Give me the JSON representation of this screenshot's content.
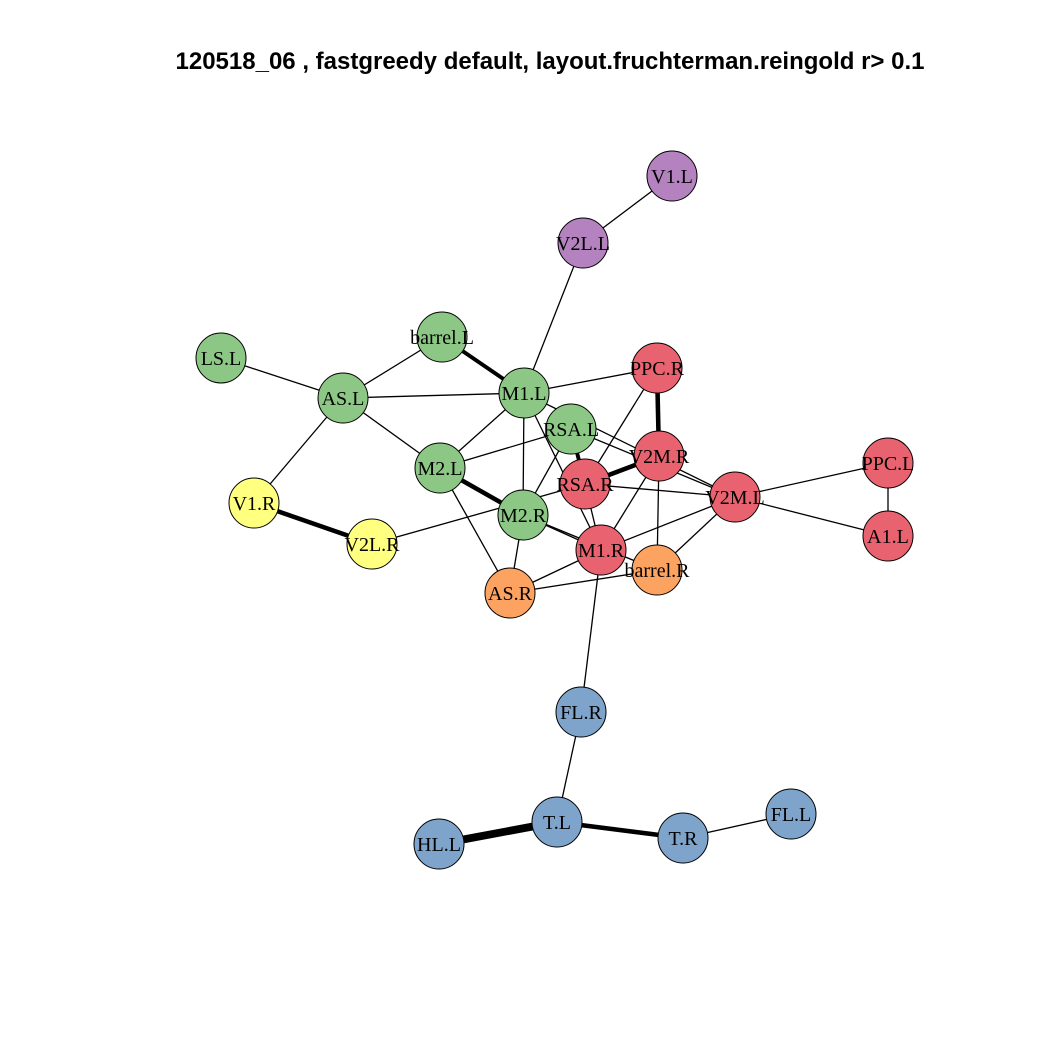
{
  "title": "120518_06 , fastgreedy default,  layout.fruchterman.reingold r> 0.1",
  "colors": {
    "green": "#8DC785",
    "red": "#E8636F",
    "orange": "#FCA362",
    "yellow": "#FFFF80",
    "purple": "#B482BF",
    "blue": "#7FA4CC"
  },
  "nodes": [
    {
      "id": "V1.L",
      "group": "purple"
    },
    {
      "id": "V2L.L",
      "group": "purple"
    },
    {
      "id": "barrel.L",
      "group": "green"
    },
    {
      "id": "LS.L",
      "group": "green"
    },
    {
      "id": "AS.L",
      "group": "green"
    },
    {
      "id": "M1.L",
      "group": "green"
    },
    {
      "id": "RSA.L",
      "group": "green"
    },
    {
      "id": "M2.L",
      "group": "green"
    },
    {
      "id": "M2.R",
      "group": "green"
    },
    {
      "id": "PPC.R",
      "group": "red"
    },
    {
      "id": "V2M.R",
      "group": "red"
    },
    {
      "id": "RSA.R",
      "group": "red"
    },
    {
      "id": "V2M.L",
      "group": "red"
    },
    {
      "id": "PPC.L",
      "group": "red"
    },
    {
      "id": "A1.L",
      "group": "red"
    },
    {
      "id": "M1.R",
      "group": "red"
    },
    {
      "id": "V1.R",
      "group": "yellow"
    },
    {
      "id": "V2L.R",
      "group": "yellow"
    },
    {
      "id": "barrel.R",
      "group": "orange"
    },
    {
      "id": "AS.R",
      "group": "orange"
    },
    {
      "id": "FL.R",
      "group": "blue"
    },
    {
      "id": "T.L",
      "group": "blue"
    },
    {
      "id": "T.R",
      "group": "blue"
    },
    {
      "id": "FL.L",
      "group": "blue"
    },
    {
      "id": "HL.L",
      "group": "blue"
    }
  ],
  "edges": [
    [
      "V1.L",
      "V2L.L",
      1
    ],
    [
      "V2L.L",
      "M1.L",
      1
    ],
    [
      "barrel.L",
      "AS.L",
      1
    ],
    [
      "barrel.L",
      "M1.L",
      3
    ],
    [
      "LS.L",
      "AS.L",
      1
    ],
    [
      "AS.L",
      "M1.L",
      1
    ],
    [
      "AS.L",
      "M2.L",
      1
    ],
    [
      "AS.L",
      "V1.R",
      1
    ],
    [
      "V1.R",
      "V2L.R",
      3.5
    ],
    [
      "V2L.R",
      "RSA.R",
      1
    ],
    [
      "M1.L",
      "PPC.R",
      1
    ],
    [
      "M1.L",
      "M2.L",
      1
    ],
    [
      "M1.L",
      "M2.R",
      1
    ],
    [
      "M1.L",
      "V2M.L",
      1
    ],
    [
      "M1.L",
      "M1.R",
      1
    ],
    [
      "M2.L",
      "RSA.L",
      1
    ],
    [
      "M2.L",
      "M2.R",
      3.5
    ],
    [
      "M2.L",
      "AS.R",
      1
    ],
    [
      "RSA.L",
      "M2.R",
      1
    ],
    [
      "RSA.L",
      "RSA.R",
      3
    ],
    [
      "RSA.L",
      "V2M.L",
      1
    ],
    [
      "PPC.R",
      "V2M.R",
      3.5
    ],
    [
      "PPC.R",
      "RSA.R",
      1
    ],
    [
      "V2M.R",
      "RSA.R",
      3.5
    ],
    [
      "V2M.R",
      "M1.R",
      1
    ],
    [
      "V2M.R",
      "barrel.R",
      1
    ],
    [
      "RSA.R",
      "V2M.L",
      1
    ],
    [
      "RSA.R",
      "M1.R",
      1
    ],
    [
      "M2.R",
      "AS.R",
      1
    ],
    [
      "M2.R",
      "M1.R",
      1
    ],
    [
      "M2.R",
      "barrel.R",
      1
    ],
    [
      "M1.R",
      "AS.R",
      1
    ],
    [
      "M1.R",
      "V2M.L",
      1
    ],
    [
      "M1.R",
      "FL.R",
      1
    ],
    [
      "AS.R",
      "barrel.R",
      1
    ],
    [
      "barrel.R",
      "V2M.L",
      1
    ],
    [
      "V2M.L",
      "PPC.L",
      1
    ],
    [
      "V2M.L",
      "A1.L",
      1
    ],
    [
      "PPC.L",
      "A1.L",
      1
    ],
    [
      "FL.R",
      "T.L",
      1
    ],
    [
      "T.L",
      "HL.L",
      6
    ],
    [
      "T.L",
      "T.R",
      3.5
    ],
    [
      "T.R",
      "FL.L",
      1
    ]
  ]
}
